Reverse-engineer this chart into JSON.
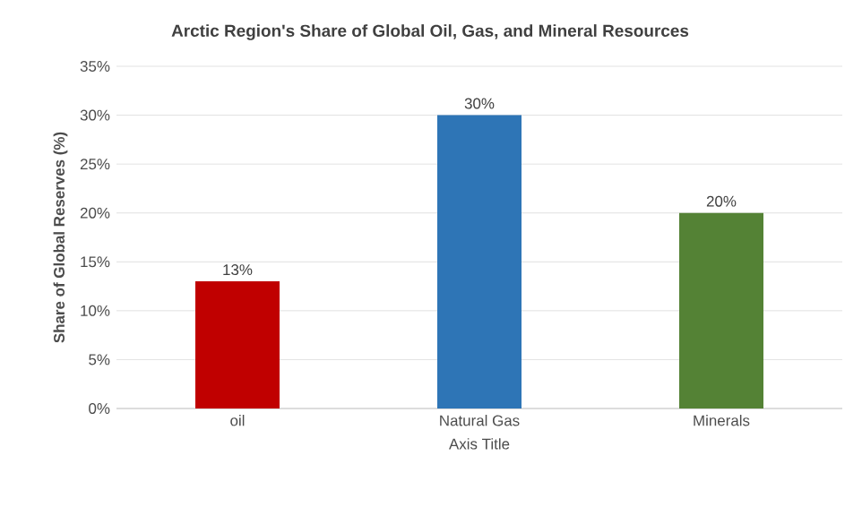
{
  "chart_data": {
    "type": "bar",
    "title": "Arctic Region's Share of Global Oil, Gas, and Mineral Resources",
    "xlabel": "Axis Title",
    "ylabel": "Share of Global Reserves (%)",
    "categories": [
      "oil",
      "Natural Gas",
      "Minerals"
    ],
    "values": [
      13,
      30,
      20
    ],
    "colors": [
      "#c00000",
      "#2e75b6",
      "#548235"
    ],
    "value_labels": [
      "13%",
      "30%",
      "20%"
    ],
    "ylim": [
      0,
      35
    ],
    "yticks": [
      {
        "value": 0,
        "label": "0%"
      },
      {
        "value": 5,
        "label": "5%"
      },
      {
        "value": 10,
        "label": "10%"
      },
      {
        "value": 15,
        "label": "15%"
      },
      {
        "value": 20,
        "label": "20%"
      },
      {
        "value": 25,
        "label": "25%"
      },
      {
        "value": 30,
        "label": "30%"
      },
      {
        "value": 35,
        "label": "35%"
      }
    ],
    "grid": "y"
  }
}
